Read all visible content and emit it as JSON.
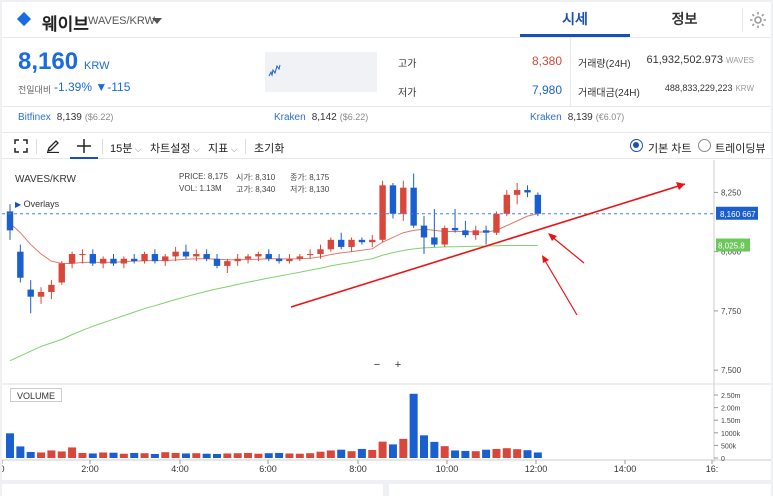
{
  "header": {
    "coin_name": "웨이브",
    "coin_symbol": "WAVES/KRW",
    "tab_price": "시세",
    "tab_info": "정보"
  },
  "summary": {
    "price": "8,160",
    "price_unit": "KRW",
    "change_label": "전일대비",
    "change_pct": "-1.39%",
    "change_abs": "▼-115",
    "high_label": "고가",
    "high_value": "8,380",
    "low_label": "저가",
    "low_value": "7,980",
    "volume_label": "거래량(24H)",
    "volume_value": "61,932,502.973",
    "volume_unit": "WAVES",
    "amount_label": "거래대금(24H)",
    "amount_value": "488,833,229,223",
    "amount_unit": "KRW"
  },
  "exchanges": [
    {
      "name": "Bitfinex",
      "price": "8,139",
      "usd": "($6.22)"
    },
    {
      "name": "Kraken",
      "price": "8,142",
      "usd": "($6.22)"
    },
    {
      "name": "Kraken",
      "price": "8,139",
      "usd": "(€6.07)"
    }
  ],
  "toolbar": {
    "interval": "15분",
    "chart_settings": "차트설정",
    "indicators": "지표",
    "reset": "초기화",
    "basic_chart": "기본 차트",
    "tradingview": "트레이딩뷰"
  },
  "chart_legend": {
    "symbol": "WAVES/KRW",
    "overlays": "Overlays",
    "price_label": "PRICE:",
    "price_value": "8,175",
    "open_label": "시가:",
    "open_value": "8,310",
    "close_label": "종가:",
    "close_value": "8,175",
    "vol_label": "VOL:",
    "vol_value": "1.13M",
    "high_label": "고가:",
    "high_value": "8,340",
    "low_label": "저가:",
    "low_value": "8,130",
    "volume_panel": "VOLUME",
    "zoom_out": "−",
    "zoom_in": "+"
  },
  "colors": {
    "up": "#d9473b",
    "down": "#1a5fd0",
    "accent": "#1a4fb8",
    "ma_short": "#e07a6e",
    "ma_long": "#7fd36b",
    "trend_annotation": "#ee1111"
  },
  "chart_data": {
    "type": "candlestick",
    "interval": "15분",
    "x_ticks": [
      "0",
      "2:00",
      "4:00",
      "6:00",
      "8:00",
      "10:00",
      "12:00",
      "14:00",
      "16:"
    ],
    "y_ticks": [
      "8,250",
      "8,000",
      "7,750",
      "7,500"
    ],
    "volume_ticks": [
      "2.50m",
      "2.00m",
      "1.50m",
      "1000k",
      "500k",
      "0"
    ],
    "current_price_tag": "8,160",
    "current_price_tag_suffix": "667",
    "ma_tag": "8,025.8",
    "ylim": [
      7450,
      8370
    ],
    "candles": [
      {
        "o": 8170,
        "h": 8200,
        "l": 8050,
        "c": 8090
      },
      {
        "o": 8000,
        "h": 8030,
        "l": 7870,
        "c": 7890
      },
      {
        "o": 7840,
        "h": 7880,
        "l": 7740,
        "c": 7810
      },
      {
        "o": 7810,
        "h": 7850,
        "l": 7780,
        "c": 7830
      },
      {
        "o": 7830,
        "h": 7880,
        "l": 7800,
        "c": 7860
      },
      {
        "o": 7870,
        "h": 7960,
        "l": 7860,
        "c": 7950
      },
      {
        "o": 7950,
        "h": 8000,
        "l": 7930,
        "c": 7990
      },
      {
        "o": 7990,
        "h": 8010,
        "l": 7950,
        "c": 7990
      },
      {
        "o": 7990,
        "h": 8010,
        "l": 7940,
        "c": 7950
      },
      {
        "o": 7950,
        "h": 7980,
        "l": 7930,
        "c": 7970
      },
      {
        "o": 7970,
        "h": 7990,
        "l": 7940,
        "c": 7950
      },
      {
        "o": 7950,
        "h": 7980,
        "l": 7930,
        "c": 7970
      },
      {
        "o": 7970,
        "h": 7990,
        "l": 7950,
        "c": 7960
      },
      {
        "o": 7960,
        "h": 8000,
        "l": 7950,
        "c": 7990
      },
      {
        "o": 7990,
        "h": 8010,
        "l": 7950,
        "c": 7960
      },
      {
        "o": 7960,
        "h": 7990,
        "l": 7940,
        "c": 7980
      },
      {
        "o": 7980,
        "h": 8020,
        "l": 7960,
        "c": 8000
      },
      {
        "o": 8000,
        "h": 8030,
        "l": 7970,
        "c": 7980
      },
      {
        "o": 7980,
        "h": 8010,
        "l": 7960,
        "c": 7990
      },
      {
        "o": 7990,
        "h": 8010,
        "l": 7960,
        "c": 7970
      },
      {
        "o": 7970,
        "h": 7990,
        "l": 7930,
        "c": 7940
      },
      {
        "o": 7940,
        "h": 7970,
        "l": 7910,
        "c": 7960
      },
      {
        "o": 7960,
        "h": 7990,
        "l": 7940,
        "c": 7970
      },
      {
        "o": 7970,
        "h": 7990,
        "l": 7950,
        "c": 7980
      },
      {
        "o": 7980,
        "h": 8000,
        "l": 7960,
        "c": 7990
      },
      {
        "o": 7990,
        "h": 8010,
        "l": 7960,
        "c": 7970
      },
      {
        "o": 7970,
        "h": 7990,
        "l": 7950,
        "c": 7960
      },
      {
        "o": 7960,
        "h": 7990,
        "l": 7950,
        "c": 7970
      },
      {
        "o": 7970,
        "h": 7990,
        "l": 7960,
        "c": 7980
      },
      {
        "o": 7990,
        "h": 8010,
        "l": 7970,
        "c": 7990
      },
      {
        "o": 7990,
        "h": 8030,
        "l": 7970,
        "c": 8010
      },
      {
        "o": 8010,
        "h": 8060,
        "l": 8000,
        "c": 8050
      },
      {
        "o": 8050,
        "h": 8080,
        "l": 8010,
        "c": 8020
      },
      {
        "o": 8020,
        "h": 8060,
        "l": 8000,
        "c": 8050
      },
      {
        "o": 8050,
        "h": 8060,
        "l": 8030,
        "c": 8040
      },
      {
        "o": 8040,
        "h": 8070,
        "l": 8020,
        "c": 8050
      },
      {
        "o": 8050,
        "h": 8300,
        "l": 8040,
        "c": 8280
      },
      {
        "o": 8280,
        "h": 8290,
        "l": 8140,
        "c": 8160
      },
      {
        "o": 8160,
        "h": 8300,
        "l": 8130,
        "c": 8270
      },
      {
        "o": 8270,
        "h": 8330,
        "l": 8100,
        "c": 8110
      },
      {
        "o": 8110,
        "h": 8150,
        "l": 7990,
        "c": 8060
      },
      {
        "o": 8060,
        "h": 8180,
        "l": 8020,
        "c": 8030
      },
      {
        "o": 8030,
        "h": 8110,
        "l": 8020,
        "c": 8100
      },
      {
        "o": 8100,
        "h": 8180,
        "l": 8080,
        "c": 8090
      },
      {
        "o": 8090,
        "h": 8130,
        "l": 8060,
        "c": 8070
      },
      {
        "o": 8070,
        "h": 8110,
        "l": 8050,
        "c": 8090
      },
      {
        "o": 8090,
        "h": 8110,
        "l": 8030,
        "c": 8080
      },
      {
        "o": 8080,
        "h": 8170,
        "l": 8070,
        "c": 8160
      },
      {
        "o": 8160,
        "h": 8260,
        "l": 8150,
        "c": 8240
      },
      {
        "o": 8240,
        "h": 8290,
        "l": 8200,
        "c": 8260
      },
      {
        "o": 8260,
        "h": 8280,
        "l": 8230,
        "c": 8250
      },
      {
        "o": 8240,
        "h": 8250,
        "l": 8150,
        "c": 8160
      }
    ],
    "ma_short": [
      8120,
      8080,
      8030,
      7990,
      7960,
      7950,
      7950,
      7955,
      7955,
      7955,
      7955,
      7958,
      7960,
      7962,
      7962,
      7963,
      7965,
      7968,
      7970,
      7970,
      7968,
      7966,
      7966,
      7967,
      7968,
      7970,
      7970,
      7969,
      7970,
      7972,
      7978,
      7988,
      7995,
      8000,
      8006,
      8012,
      8040,
      8060,
      8080,
      8090,
      8095,
      8090,
      8085,
      8085,
      8085,
      8083,
      8083,
      8090,
      8110,
      8130,
      8150,
      8160
    ],
    "ma_long": [
      7540,
      7560,
      7580,
      7600,
      7615,
      7630,
      7650,
      7668,
      7685,
      7700,
      7715,
      7730,
      7745,
      7760,
      7772,
      7785,
      7798,
      7810,
      7822,
      7833,
      7843,
      7852,
      7862,
      7871,
      7880,
      7889,
      7897,
      7905,
      7913,
      7922,
      7930,
      7940,
      7948,
      7955,
      7963,
      7970,
      7985,
      7996,
      8005,
      8012,
      8016,
      8018,
      8020,
      8021,
      8022,
      8023,
      8024,
      8025,
      8026,
      8026,
      8026,
      8026
    ],
    "volume_k": [
      980,
      460,
      240,
      220,
      300,
      260,
      420,
      200,
      180,
      220,
      210,
      170,
      200,
      190,
      160,
      230,
      200,
      180,
      190,
      170,
      160,
      180,
      190,
      200,
      170,
      190,
      200,
      180,
      170,
      190,
      250,
      300,
      330,
      270,
      360,
      320,
      650,
      540,
      760,
      2550,
      900,
      640,
      470,
      300,
      280,
      270,
      330,
      360,
      390,
      350,
      310,
      220
    ]
  }
}
